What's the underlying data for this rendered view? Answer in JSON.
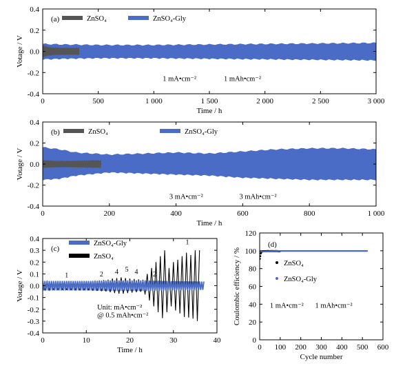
{
  "colors": {
    "znso4": "#555555",
    "gly": "#4a6cc6",
    "black": "#000000"
  },
  "chart_data": [
    {
      "panel": "a",
      "panel_label": "(a)",
      "type": "line",
      "xlabel": "Time / h",
      "ylabel": "Votage / V",
      "xlim": [
        0,
        3000
      ],
      "ylim": [
        -0.4,
        0.4
      ],
      "xticks": [
        0,
        500,
        1000,
        1500,
        2000,
        2500,
        3000
      ],
      "xticklabels": [
        "0",
        "500",
        "1 000",
        "1 500",
        "2 000",
        "2 500",
        "3 000"
      ],
      "yticks": [
        -0.4,
        -0.2,
        0.0,
        0.2,
        0.4
      ],
      "yticklabels": [
        "-0.4",
        "-0.2",
        "0.0",
        "0.2",
        "0.4"
      ],
      "legend": "top-left",
      "series": [
        {
          "name": "ZnSO₄",
          "x": [
            0,
            50,
            100,
            200,
            300,
            330
          ],
          "upper": [
            0.055,
            0.04,
            0.035,
            0.033,
            0.032,
            0.032
          ],
          "lower": [
            -0.055,
            -0.04,
            -0.035,
            -0.033,
            -0.032,
            -0.032
          ]
        },
        {
          "name": "ZnSO₄-Gly",
          "x": [
            0,
            200,
            500,
            1000,
            1500,
            2000,
            2500,
            3000
          ],
          "upper": [
            0.07,
            0.065,
            0.06,
            0.06,
            0.065,
            0.07,
            0.075,
            0.08
          ],
          "lower": [
            -0.075,
            -0.07,
            -0.065,
            -0.065,
            -0.07,
            -0.075,
            -0.08,
            -0.085
          ]
        }
      ],
      "annotations": [
        {
          "text": "1 mA•cm⁻²",
          "x": 1080,
          "y": -0.28
        },
        {
          "text": "1 mAh•cm⁻²",
          "x": 1630,
          "y": -0.28
        }
      ]
    },
    {
      "panel": "b",
      "panel_label": "(b)",
      "type": "line",
      "xlabel": "Time / h",
      "ylabel": "Votage / V",
      "xlim": [
        0,
        1000
      ],
      "ylim": [
        -0.4,
        0.4
      ],
      "xticks": [
        0,
        200,
        400,
        600,
        800,
        1000
      ],
      "xticklabels": [
        "0",
        "200",
        "400",
        "600",
        "800",
        "1 000"
      ],
      "yticks": [
        -0.4,
        -0.2,
        0.0,
        0.2,
        0.4
      ],
      "yticklabels": [
        "-0.4",
        "-0.2",
        "0.0",
        "0.2",
        "0.4"
      ],
      "legend": "top",
      "series": [
        {
          "name": "ZnSO₄",
          "x": [
            0,
            40,
            100,
            150,
            175
          ],
          "upper": [
            0.035,
            0.03,
            0.03,
            0.035,
            0.035
          ],
          "lower": [
            -0.035,
            -0.03,
            -0.03,
            -0.035,
            -0.035
          ]
        },
        {
          "name": "ZnSO₄-Gly",
          "x": [
            0,
            50,
            100,
            200,
            300,
            400,
            500,
            600,
            700,
            800,
            900,
            1000
          ],
          "upper": [
            0.16,
            0.14,
            0.11,
            0.09,
            0.1,
            0.11,
            0.1,
            0.12,
            0.14,
            0.15,
            0.15,
            0.14
          ],
          "lower": [
            -0.15,
            -0.14,
            -0.11,
            -0.08,
            -0.09,
            -0.1,
            -0.11,
            -0.13,
            -0.14,
            -0.15,
            -0.15,
            -0.15
          ]
        }
      ],
      "annotations": [
        {
          "text": "3 mA•cm⁻²",
          "x": 380,
          "y": -0.33
        },
        {
          "text": "3 mAh•cm⁻²",
          "x": 590,
          "y": -0.33
        }
      ]
    },
    {
      "panel": "c",
      "panel_label": "(c)",
      "type": "line",
      "xlabel": "Time / h",
      "ylabel": "Votage / V",
      "xlim": [
        0,
        40
      ],
      "ylim": [
        -0.4,
        0.4
      ],
      "xticks": [
        0,
        10,
        20,
        30,
        40
      ],
      "xticklabels": [
        "0",
        "10",
        "20",
        "30",
        "40"
      ],
      "yticks": [
        -0.4,
        -0.3,
        -0.2,
        -0.1,
        0.0,
        0.1,
        0.2,
        0.3,
        0.4
      ],
      "yticklabels": [
        "-0.4",
        "-0.3",
        "-0.2",
        "-0.1",
        "0.0",
        "0.1",
        "0.2",
        "0.3",
        "0.4"
      ],
      "legend": "top-left",
      "series": [
        {
          "name": "ZnSO₄-Gly",
          "x": [
            0,
            11,
            15,
            23,
            28,
            37
          ],
          "amplitude": [
            0.04,
            0.04,
            0.045,
            0.045,
            0.04,
            0.035
          ]
        },
        {
          "name": "ZnSO₄",
          "x": [
            0,
            11,
            15,
            16,
            18,
            20,
            23,
            28,
            29,
            30,
            31,
            32,
            33,
            34,
            35,
            36
          ],
          "amplitude": [
            0.035,
            0.04,
            0.05,
            0.06,
            0.07,
            0.06,
            0.05,
            0.3,
            0.15,
            0.2,
            0.22,
            0.25,
            0.28,
            0.26,
            0.3,
            0.3
          ]
        }
      ],
      "rate_labels": [
        {
          "text": "1",
          "x": 5.5,
          "y": 0.07
        },
        {
          "text": "2",
          "x": 13.5,
          "y": 0.08
        },
        {
          "text": "4",
          "x": 17,
          "y": 0.1
        },
        {
          "text": "5",
          "x": 19.3,
          "y": 0.12
        },
        {
          "text": "4",
          "x": 21.5,
          "y": 0.1
        },
        {
          "text": "2",
          "x": 25.7,
          "y": 0.08
        },
        {
          "text": "1",
          "x": 33.2,
          "y": 0.35
        }
      ],
      "annotations": [
        {
          "text": "Unit: mA•cm⁻²",
          "x": 12.5,
          "y": -0.2
        },
        {
          "text": "@ 0.5 mAh•cm⁻²",
          "x": 12.5,
          "y": -0.27
        }
      ]
    },
    {
      "panel": "d",
      "panel_label": "(d)",
      "type": "scatter",
      "xlabel": "Cycle number",
      "ylabel": "Coulombic efficiency / %",
      "xlim": [
        0,
        600
      ],
      "ylim": [
        0,
        120
      ],
      "xticks": [
        0,
        100,
        200,
        300,
        400,
        500,
        600
      ],
      "xticklabels": [
        "0",
        "100",
        "200",
        "300",
        "400",
        "500",
        "600"
      ],
      "yticks": [
        0,
        20,
        40,
        60,
        80,
        100,
        120
      ],
      "yticklabels": [
        "0",
        "20",
        "40",
        "60",
        "80",
        "100",
        "120"
      ],
      "legend": "center",
      "series": [
        {
          "name": "ZnSO₄",
          "x": [
            1,
            5,
            10,
            15,
            20,
            30,
            40,
            50,
            60,
            70,
            80,
            90,
            100
          ],
          "y": [
            91,
            97,
            99,
            99.5,
            99.6,
            99.6,
            99.7,
            99.6,
            99.7,
            99.6,
            99.7,
            99.6,
            99.6
          ]
        },
        {
          "name": "ZnSO₄-Gly",
          "x": [
            1,
            100,
            200,
            300,
            400,
            500,
            525
          ],
          "y": [
            99,
            99.8,
            99.8,
            99.8,
            99.8,
            99.8,
            99.8
          ]
        }
      ],
      "annotations": [
        {
          "text": "1 mA•cm⁻²",
          "x": 50,
          "y": 36
        },
        {
          "text": "1 mAh•cm⁻²",
          "x": 270,
          "y": 36
        }
      ]
    }
  ]
}
